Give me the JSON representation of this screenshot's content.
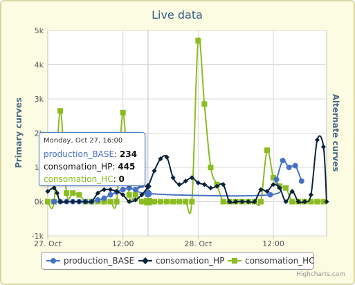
{
  "chart_data": {
    "type": "line",
    "title": "Live data",
    "y_axis_primary_title": "Primary curves",
    "y_axis_alternate_title": "Alternate curves",
    "y_ticks": [
      "-1k",
      "0k",
      "1k",
      "2k",
      "3k",
      "4k",
      "5k"
    ],
    "ylim": [
      -1000,
      5000
    ],
    "x_tick_labels": [
      "27. Oct",
      "12:00",
      "28. Oct",
      "12:00"
    ],
    "x_tick_hours": [
      0,
      12,
      24,
      36
    ],
    "xlim_hours": [
      0,
      44.5
    ],
    "grid": true,
    "series": [
      {
        "name": "production_BASE",
        "color": "#4572c4",
        "marker": "circle",
        "x": [
          1,
          2,
          3,
          4,
          5,
          6,
          7,
          8,
          9,
          10,
          11,
          12,
          13,
          14,
          15,
          16,
          35.5,
          36.5,
          37.5,
          38.5,
          39.5,
          40.5
        ],
        "y": [
          0,
          0,
          0,
          0,
          0,
          0,
          0,
          50,
          100,
          200,
          280,
          350,
          400,
          350,
          480,
          234,
          200,
          650,
          1200,
          1000,
          1050,
          600
        ]
      },
      {
        "name": "consomation_HP",
        "color": "#0d233a",
        "marker": "diamond",
        "x": [
          0,
          1,
          1.5,
          2,
          3,
          4,
          5,
          6,
          7,
          8,
          9,
          10,
          11,
          12,
          13,
          14,
          15,
          16,
          17,
          18,
          19,
          20,
          21,
          22,
          23,
          24,
          25,
          26,
          27,
          28,
          29,
          30,
          31,
          32,
          33,
          34,
          35,
          36,
          37,
          38,
          39,
          40,
          41,
          42,
          43,
          44,
          44.5
        ],
        "y": [
          300,
          400,
          250,
          0,
          0,
          0,
          0,
          0,
          0,
          250,
          350,
          350,
          300,
          200,
          0,
          50,
          200,
          445,
          900,
          1250,
          1300,
          700,
          500,
          600,
          700,
          550,
          500,
          400,
          450,
          500,
          0,
          0,
          0,
          0,
          0,
          350,
          300,
          500,
          400,
          0,
          300,
          0,
          0,
          200,
          1800,
          1600,
          0
        ]
      },
      {
        "name": "consomation_HC",
        "color": "#8bbc21",
        "marker": "square",
        "x": [
          0,
          1,
          2,
          3,
          4,
          5,
          6,
          7,
          8,
          9,
          10,
          11,
          12,
          13,
          14,
          15,
          16,
          17,
          18,
          19,
          20,
          21,
          22,
          23,
          24,
          25,
          26,
          27,
          28,
          29,
          30,
          31,
          32,
          33,
          34,
          35,
          36,
          37,
          38,
          39,
          40,
          41,
          42,
          43,
          44
        ],
        "y": [
          0,
          0,
          2650,
          250,
          250,
          200,
          0,
          0,
          0,
          0,
          0,
          0,
          2600,
          200,
          200,
          0,
          0,
          0,
          0,
          0,
          0,
          0,
          0,
          0,
          4700,
          2850,
          1000,
          500,
          0,
          0,
          0,
          0,
          0,
          0,
          0,
          1500,
          700,
          450,
          400,
          0,
          0,
          0,
          0,
          0,
          0
        ]
      }
    ]
  },
  "tooltip": {
    "header": "Monday, Oct 27, 16:00",
    "rows": [
      {
        "series": "production_BASE",
        "value": "234",
        "color": "#4572c4"
      },
      {
        "series": "consomation_HP",
        "value": "445",
        "color": "#111111"
      },
      {
        "series": "consomation_HC",
        "value": "0",
        "color": "#8bbc21"
      }
    ]
  },
  "legend": [
    "production_BASE",
    "consomation_HP",
    "consomation_HC"
  ],
  "credits": "Highcharts.com"
}
